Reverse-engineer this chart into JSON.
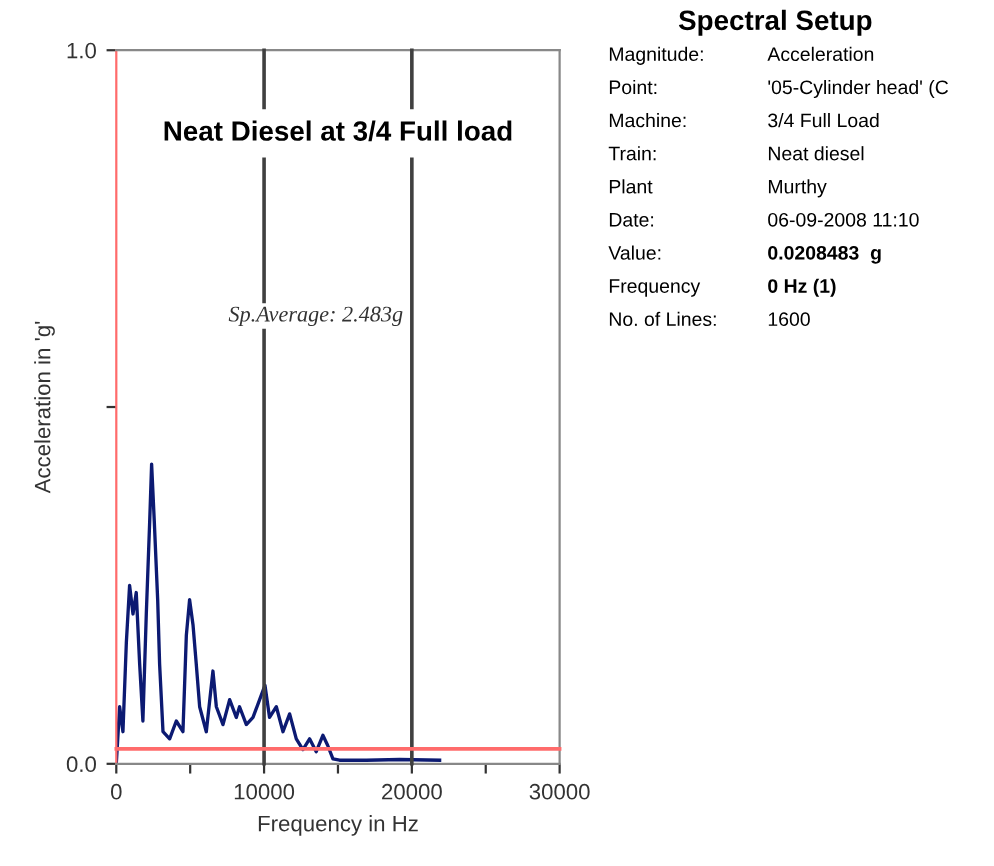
{
  "chart_data": [
    {
      "type": "line",
      "title": "Neat Diesel at 3/4 Full load",
      "xlabel": "Frequency in Hz",
      "ylabel": "Acceleration in 'g'",
      "annotations": [
        "Sp.Average: 2.483g"
      ],
      "series": [
        {
          "color": "#0c1a72",
          "x": [
            0,
            225,
            450,
            680,
            900,
            1130,
            1350,
            1580,
            1800,
            2030,
            2260,
            2390,
            2570,
            2800,
            2930,
            3160,
            3610,
            4060,
            4510,
            4740,
            4960,
            5190,
            5410,
            5640,
            6090,
            6540,
            6770,
            7220,
            7670,
            8120,
            8340,
            8800,
            9250,
            9700,
            10060,
            10370,
            10830,
            11280,
            11730,
            12180,
            12630,
            13080,
            13530,
            13980,
            14300,
            14660,
            15110,
            16920,
            19170,
            21880
          ],
          "values": [
            0,
            0.08,
            0.045,
            0.17,
            0.25,
            0.21,
            0.24,
            0.14,
            0.06,
            0.21,
            0.34,
            0.42,
            0.34,
            0.23,
            0.14,
            0.045,
            0.035,
            0.06,
            0.045,
            0.18,
            0.23,
            0.195,
            0.14,
            0.08,
            0.045,
            0.13,
            0.08,
            0.055,
            0.09,
            0.065,
            0.08,
            0.055,
            0.065,
            0.09,
            0.11,
            0.065,
            0.08,
            0.045,
            0.07,
            0.035,
            0.02,
            0.035,
            0.017,
            0.04,
            0.026,
            0.007,
            0.005,
            0.005,
            0.006,
            0.005
          ]
        }
      ],
      "xlim": [
        0,
        30000
      ],
      "ylim": [
        0,
        1
      ],
      "xticks": [
        0,
        {
          "value": 5000,
          "label": null
        },
        10000,
        {
          "value": 15000,
          "label": null
        },
        20000,
        {
          "value": 25000,
          "label": null
        },
        30000
      ],
      "yticks": [
        {
          "value": 0,
          "label": "0.0"
        },
        {
          "value": 0.5,
          "label": null
        },
        {
          "value": 1,
          "label": "1.0"
        }
      ],
      "ref_lines": [
        {
          "axis": "x",
          "value": 10000,
          "color": "#404040"
        },
        {
          "axis": "x",
          "value": 20000,
          "color": "#404040"
        },
        {
          "axis": "y",
          "value": 0.021,
          "color": "#ff6b6b"
        }
      ],
      "grid": false,
      "legend": false,
      "marker": "none",
      "line_style": "solid"
    },
    {
      "type": "other",
      "title": "Spectral Setup",
      "annotations": [
        "Magnitude:",
        "Acceleration",
        "Point:",
        "'05-Cylinder head' (C",
        "Machine:",
        "3/4 Full Load",
        "Train:",
        "Neat diesel",
        "Plant",
        "Murthy",
        "Date:",
        "06-09-2008 11:10",
        "Value:",
        "0.0208483  g",
        "Frequency",
        "0 Hz (1)",
        "No. of Lines:",
        "1600"
      ]
    }
  ]
}
